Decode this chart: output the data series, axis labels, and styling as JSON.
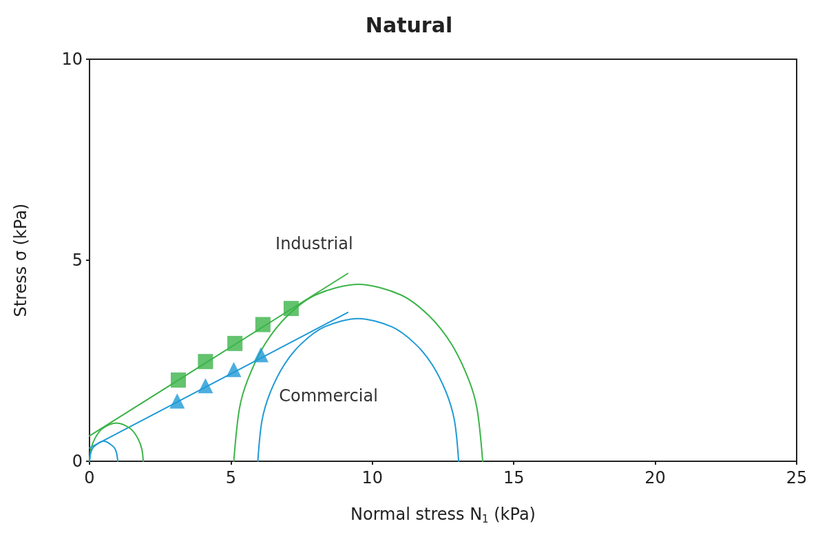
{
  "chart_data": {
    "type": "line",
    "title": "Natural",
    "xlabel": "Normal stress N$_{1}$ (kPa)",
    "ylabel": "Stress σ (kPa)",
    "xlim": [
      0,
      25
    ],
    "xticks": [
      0,
      5,
      10,
      15,
      20,
      25
    ],
    "ylim": [
      0,
      10
    ],
    "yticks": [
      0,
      5,
      10
    ],
    "grid": false,
    "legend": false,
    "series": [
      {
        "name": "Industrial",
        "color": "#3cb44a",
        "marker": "none",
        "x": [
          0,
          9.13
        ],
        "values": [
          0.63,
          4.67
        ]
      },
      {
        "color": "#1e9ad6",
        "marker": "none",
        "x": [
          0,
          9.13
        ],
        "values": [
          0.33,
          3.7
        ]
      },
      {
        "color": "#3cb44a",
        "marker": "none",
        "x": [
          0,
          0.05,
          0.2,
          0.45,
          0.95,
          1.45,
          1.7,
          1.85,
          1.9
        ],
        "values": [
          0,
          0.3,
          0.58,
          0.81,
          0.95,
          0.81,
          0.58,
          0.3,
          0
        ]
      },
      {
        "color": "#1e9ad6",
        "marker": "none",
        "x": [
          0,
          0.05,
          0.15,
          0.5,
          0.85,
          0.95,
          1.0
        ],
        "values": [
          0,
          0.22,
          0.36,
          0.5,
          0.36,
          0.22,
          0
        ]
      },
      {
        "color": "#3cb44a",
        "marker": "none",
        "x": [
          5.1,
          5.3,
          5.6,
          6.2,
          7,
          8,
          9.5,
          11,
          12,
          12.8,
          13.4,
          13.7,
          13.9
        ],
        "values": [
          0,
          1.31,
          2.04,
          2.91,
          3.62,
          4.14,
          4.4,
          4.14,
          3.62,
          2.91,
          2.04,
          1.31,
          0
        ]
      },
      {
        "name": "Commercial",
        "color": "#1e9ad6",
        "marker": "none",
        "x": [
          5.95,
          6.1,
          6.4,
          6.9,
          7.5,
          8.3,
          9.5,
          10.7,
          11.5,
          12.1,
          12.6,
          12.9,
          13.05
        ],
        "values": [
          0,
          1.02,
          1.73,
          2.42,
          2.93,
          3.34,
          3.55,
          3.34,
          2.93,
          2.42,
          1.73,
          1.02,
          0
        ]
      },
      {
        "type": "scatter",
        "color": "#3cb44a",
        "marker": "square",
        "x": [
          3.14,
          4.1,
          5.14,
          6.13,
          7.13
        ],
        "values": [
          2.02,
          2.48,
          2.93,
          3.4,
          3.8
        ]
      },
      {
        "type": "scatter",
        "color": "#1e9ad6",
        "marker": "triangle",
        "x": [
          3.1,
          4.1,
          5.1,
          6.06
        ],
        "values": [
          1.5,
          1.88,
          2.28,
          2.65
        ]
      }
    ]
  }
}
